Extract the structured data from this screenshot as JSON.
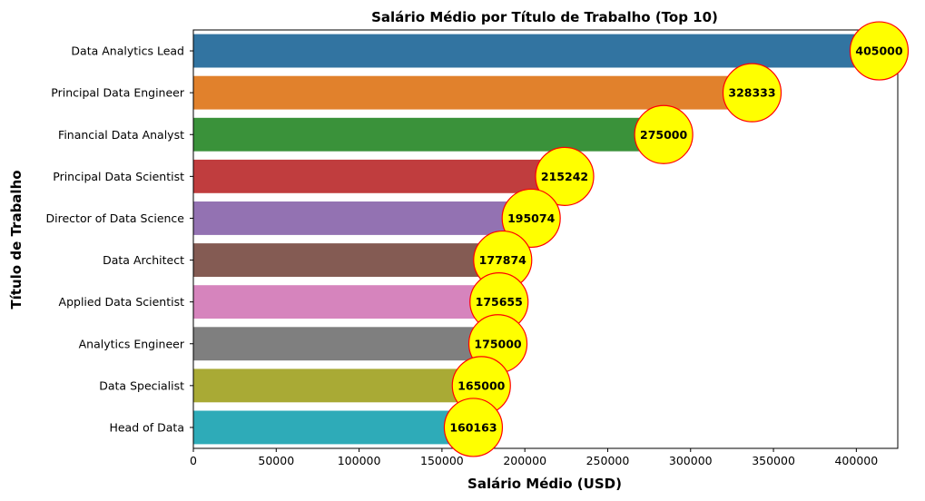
{
  "chart_data": {
    "type": "bar",
    "orientation": "horizontal",
    "title": "Salário Médio por Título de Trabalho (Top 10)",
    "xlabel": "Salário Médio (USD)",
    "ylabel": "Título de Trabalho",
    "categories": [
      "Data Analytics Lead",
      "Principal Data Engineer",
      "Financial Data Analyst",
      "Principal Data Scientist",
      "Director of Data Science",
      "Data Architect",
      "Applied Data Scientist",
      "Analytics Engineer",
      "Data Specialist",
      "Head of Data"
    ],
    "values": [
      405000,
      328333,
      275000,
      215242,
      195074,
      177874,
      175655,
      175000,
      165000,
      160163
    ],
    "data_labels": [
      "405000",
      "328333",
      "275000",
      "215242",
      "195074",
      "177874",
      "175655",
      "175000",
      "165000",
      "160163"
    ],
    "colors": [
      "#3274a1",
      "#e1812c",
      "#3a923a",
      "#c03d3e",
      "#9372b2",
      "#845b53",
      "#d684bd",
      "#7f7f7f",
      "#a9aa35",
      "#2eabb8"
    ],
    "label_marker": {
      "fill": "#ffff00",
      "stroke": "#ff0000",
      "shape": "circle"
    },
    "xlim": [
      0,
      425000
    ],
    "xticks": [
      0,
      50000,
      100000,
      150000,
      200000,
      250000,
      300000,
      350000,
      400000
    ],
    "xtick_labels": [
      "0",
      "50000",
      "100000",
      "150000",
      "200000",
      "250000",
      "300000",
      "350000",
      "400000"
    ],
    "grid": false,
    "legend": "none"
  }
}
